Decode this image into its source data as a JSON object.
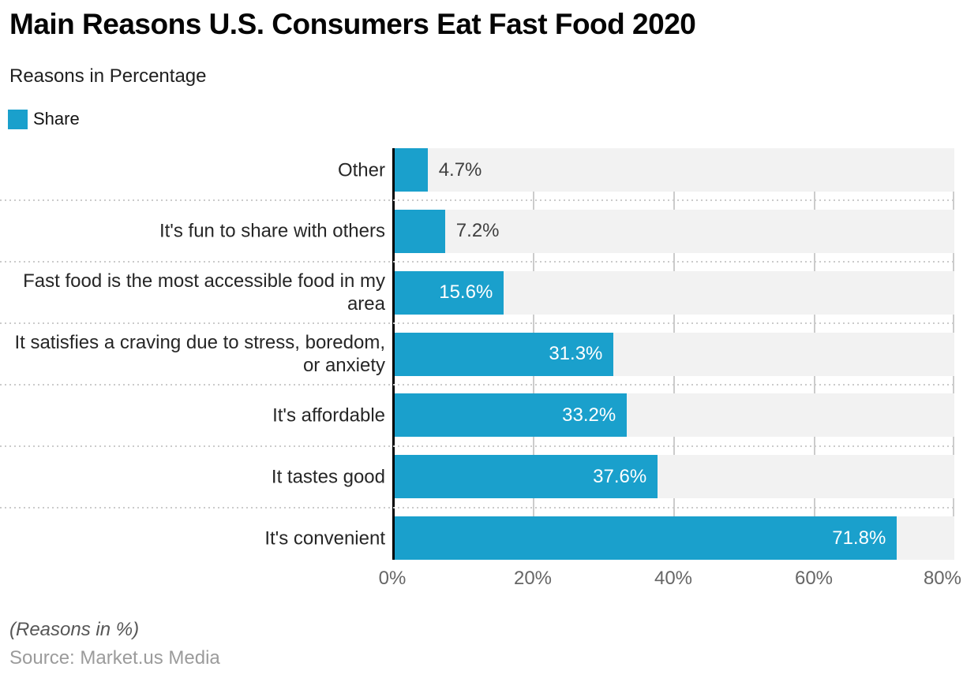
{
  "header": {
    "title": "Main Reasons U.S. Consumers Eat Fast Food 2020",
    "subtitle": "Reasons in Percentage"
  },
  "legend": {
    "items": [
      {
        "label": "Share",
        "color": "#1aa0cc"
      }
    ]
  },
  "chart_data": {
    "type": "bar",
    "orientation": "horizontal",
    "title": "Main Reasons U.S. Consumers Eat Fast Food 2020",
    "subtitle": "Reasons in Percentage",
    "categories": [
      "Other",
      "It's fun to share with others",
      "Fast food is the most accessible food in my area",
      "It satisfies a craving due to stress, boredom, or anxiety",
      "It's affordable",
      "It tastes good",
      "It's convenient"
    ],
    "series": [
      {
        "name": "Share",
        "values": [
          4.7,
          7.2,
          15.6,
          31.3,
          33.2,
          37.6,
          71.8
        ]
      }
    ],
    "value_labels": [
      "4.7%",
      "7.2%",
      "15.6%",
      "31.3%",
      "33.2%",
      "37.6%",
      "71.8%"
    ],
    "x_ticks": [
      "0%",
      "20%",
      "40%",
      "60%",
      "80%"
    ],
    "xlim": [
      0,
      80
    ],
    "grid": true,
    "legend_position": "top-left",
    "colors": {
      "bar": "#1aa0cc",
      "track": "#f2f2f2",
      "grid": "#cccccc",
      "axis": "#000000",
      "value_label_inside": "#ffffff",
      "value_label_outside": "#3f3f3f"
    }
  },
  "footer": {
    "note": "(Reasons in %)",
    "source": "Source: Market.us Media"
  }
}
